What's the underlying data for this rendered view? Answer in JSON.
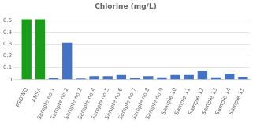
{
  "chart_data": {
    "type": "bar",
    "title": "Chlorine (mg/L)",
    "categories": [
      "PSDWQ",
      "ANSA",
      "Sample no 1",
      "Sample no 2",
      "Sample no 3",
      "Sample no 4",
      "Sample no 5",
      "Sample no 6",
      "Sample no 7",
      "Sample no 8",
      "Sample no 9",
      "Sample 10",
      "Sample 11",
      "Sample 12",
      "Sample 13",
      "Sample 14",
      "Sample 15"
    ],
    "values": [
      0.51,
      0.51,
      0.015,
      0.31,
      0.01,
      0.03,
      0.03,
      0.04,
      0.015,
      0.03,
      0.02,
      0.04,
      0.04,
      0.075,
      0.02,
      0.05,
      0.025
    ],
    "colors": [
      "#1a9e1a",
      "#1a9e1a",
      "#4472c4",
      "#4472c4",
      "#4472c4",
      "#4472c4",
      "#4472c4",
      "#4472c4",
      "#4472c4",
      "#4472c4",
      "#4472c4",
      "#4472c4",
      "#4472c4",
      "#4472c4",
      "#4472c4",
      "#4472c4",
      "#4472c4"
    ],
    "ylim": [
      0,
      0.56
    ],
    "yticks": [
      0,
      0.1,
      0.2,
      0.3,
      0.4,
      0.5
    ],
    "grid": true
  }
}
